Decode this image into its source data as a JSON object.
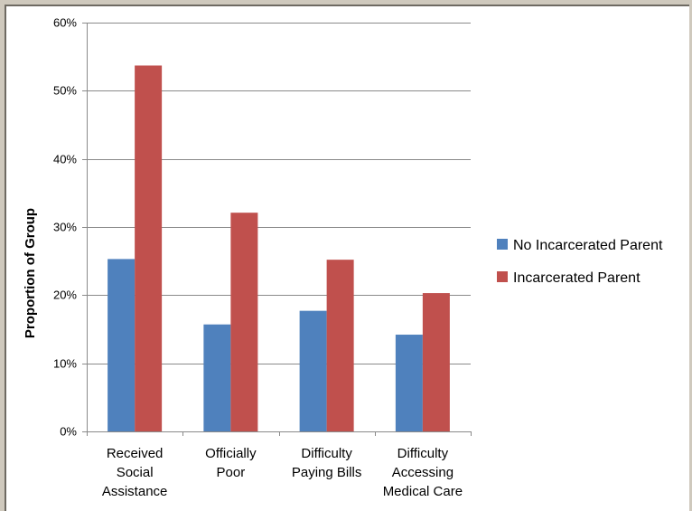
{
  "chart_data": {
    "type": "bar",
    "title": "",
    "xlabel": "",
    "ylabel": "Proportion of Group",
    "ylim": [
      0,
      0.6
    ],
    "y_ticks": [
      0,
      0.1,
      0.2,
      0.3,
      0.4,
      0.5,
      0.6
    ],
    "y_tick_labels": [
      "0%",
      "10%",
      "20%",
      "30%",
      "40%",
      "50%",
      "60%"
    ],
    "grid": true,
    "legend_position": "right",
    "categories": [
      [
        "Received",
        "Social",
        "Assistance"
      ],
      [
        "Officially",
        "Poor"
      ],
      [
        "Difficulty",
        "Paying Bills"
      ],
      [
        "Difficulty",
        "Accessing",
        "Medical Care"
      ]
    ],
    "series": [
      {
        "name": "No Incarcerated Parent",
        "color": "#4f81bd",
        "values": [
          0.253,
          0.157,
          0.177,
          0.142
        ]
      },
      {
        "name": "Incarcerated Parent",
        "color": "#c0504d",
        "values": [
          0.537,
          0.321,
          0.252,
          0.203
        ]
      }
    ]
  }
}
